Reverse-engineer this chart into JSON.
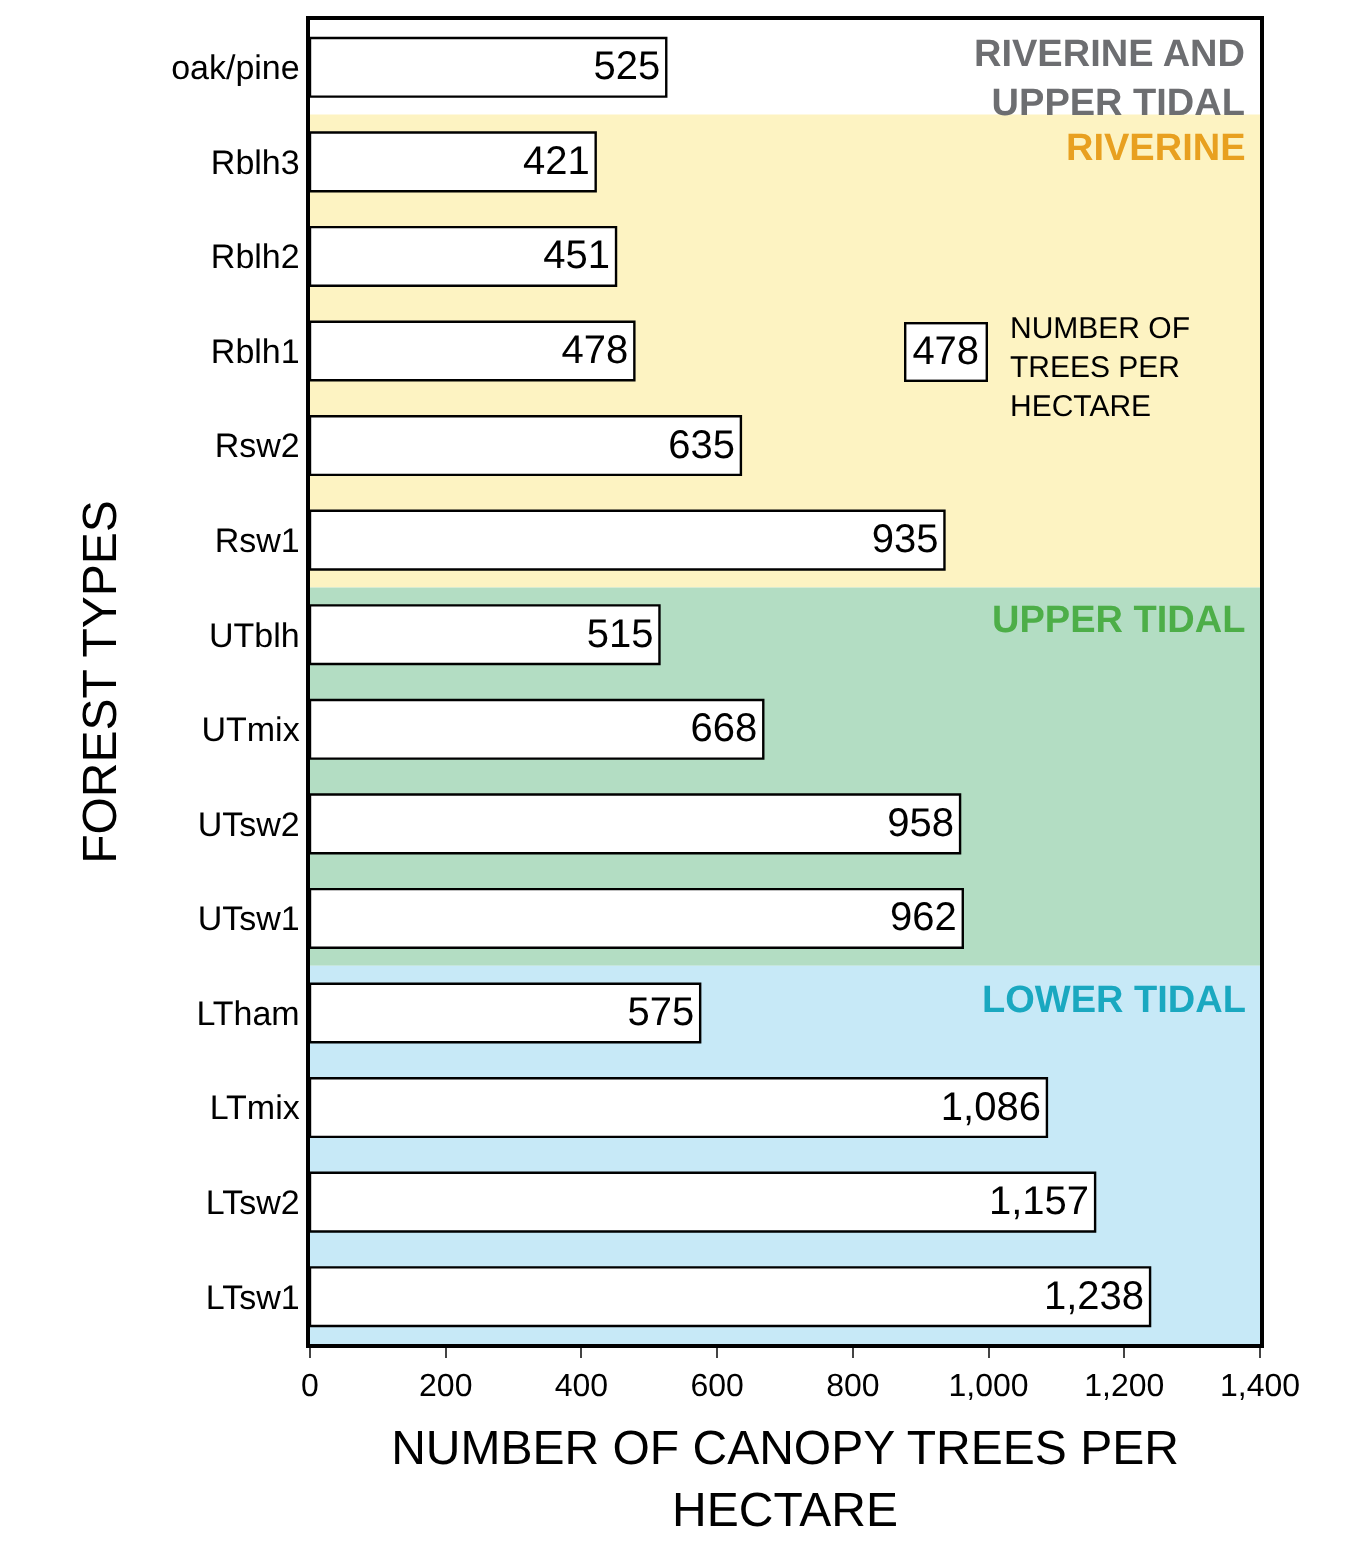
{
  "chart_data": {
    "type": "bar",
    "orientation": "horizontal",
    "xlabel": "NUMBER OF CANOPY TREES PER HECTARE",
    "ylabel": "FOREST TYPES",
    "categories": [
      "oak/pine",
      "Rblh3",
      "Rblh2",
      "Rblh1",
      "Rsw2",
      "Rsw1",
      "UTblh",
      "UTmix",
      "UTsw2",
      "UTsw1",
      "LTham",
      "LTmix",
      "LTsw2",
      "LTsw1"
    ],
    "values": [
      525,
      421,
      451,
      478,
      635,
      935,
      515,
      668,
      958,
      962,
      575,
      1086,
      1157,
      1238
    ],
    "color": "#ffffff",
    "grid": false,
    "value_labels": [
      "525",
      "421",
      "451",
      "478",
      "635",
      "935",
      "515",
      "668",
      "958",
      "962",
      "575",
      "1,086",
      "1,157",
      "1,238"
    ],
    "xlim": [
      0,
      1400
    ],
    "xticks": [
      0,
      200,
      400,
      600,
      800,
      {
        "value": 1000,
        "label": "1,000"
      },
      {
        "value": 1200,
        "label": "1,200"
      },
      {
        "value": 1400,
        "label": "1,400"
      }
    ],
    "bands": [
      {
        "axis": "y",
        "from": "Rblh3",
        "to": "Rsw1",
        "label": "RIVERINE",
        "color": "#fdf3c2"
      },
      {
        "axis": "y",
        "from": "UTblh",
        "to": "UTsw1",
        "label": "UPPER TIDAL",
        "color": "#b3ddc3"
      },
      {
        "axis": "y",
        "from": "LTham",
        "to": "LTsw1",
        "label": "LOWER TIDAL",
        "color": "#c7e9f7"
      }
    ],
    "annotations": [
      "RIVERINE AND UPPER TIDAL",
      "478",
      "NUMBER OF TREES PER HECTARE"
    ]
  }
}
